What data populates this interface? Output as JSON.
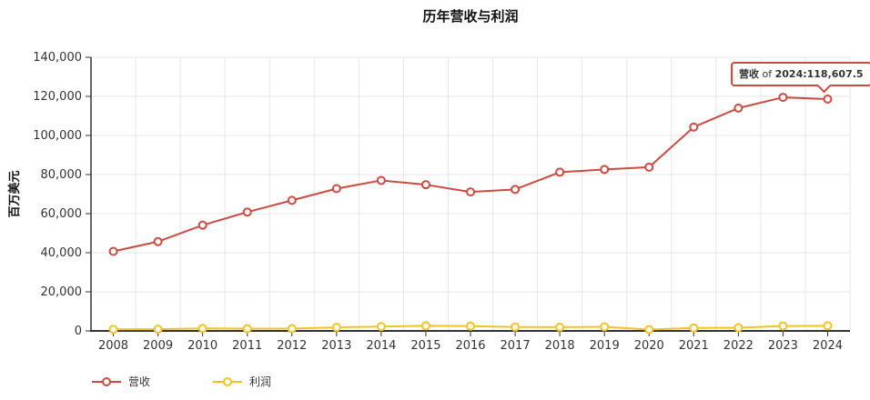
{
  "chart_data": {
    "type": "line",
    "title": "历年营收与利润",
    "xlabel": "",
    "ylabel": "百万美元",
    "categories": [
      "2008",
      "2009",
      "2010",
      "2011",
      "2012",
      "2013",
      "2014",
      "2015",
      "2016",
      "2017",
      "2018",
      "2019",
      "2020",
      "2021",
      "2022",
      "2023",
      "2024"
    ],
    "ylim": [
      0,
      140000
    ],
    "ytick_step": 20000,
    "grid": true,
    "legend_position": "bottom-left",
    "series": [
      {
        "name": "营收",
        "color": "#cb4b42",
        "values": [
          40700,
          45700,
          54100,
          60800,
          66800,
          72800,
          77000,
          74800,
          71100,
          72400,
          81200,
          82600,
          83800,
          104300,
          114000,
          119500,
          118607.5
        ]
      },
      {
        "name": "利润",
        "color": "#f2c327",
        "values": [
          800,
          900,
          1300,
          1150,
          1150,
          1800,
          2200,
          2600,
          2450,
          2000,
          1900,
          2100,
          700,
          1500,
          1650,
          2500,
          2600
        ]
      }
    ],
    "grid_color": "#e6e6e6",
    "axis_color": "#333333",
    "text_color": "#333333",
    "marker_fill": "#ffffff"
  },
  "tooltip": {
    "series": "营收",
    "connector": " of ",
    "value": "2024:118,607.5",
    "full_text": "营收 of 2024:118,607.5",
    "border_color": "#cb4b42",
    "target_category": "2024",
    "target_value": 118607.5
  }
}
